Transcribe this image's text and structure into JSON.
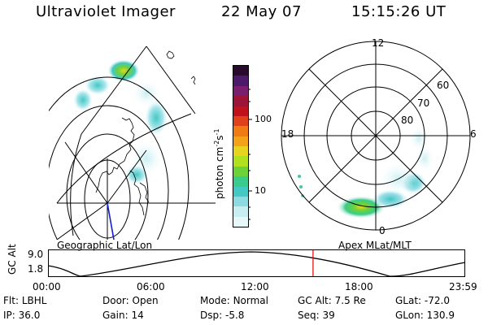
{
  "header": {
    "instrument": "Ultraviolet Imager",
    "date": "22 May 07",
    "time": "15:15:26 UT"
  },
  "colorbar": {
    "label": "photon cm",
    "label_sup1": "-2",
    "label_mid": "s",
    "label_sup2": "-1",
    "ticks": [
      "100",
      "10"
    ],
    "colors": [
      "#2a0a2e",
      "#4b1a6b",
      "#7a1f6e",
      "#9c1538",
      "#c0121c",
      "#e0401a",
      "#f07a14",
      "#f4a21a",
      "#e8d41e",
      "#b0e020",
      "#6cd23a",
      "#3acb8c",
      "#44c8c4",
      "#8cdbe0",
      "#c8eef2",
      "#e8f8fa"
    ]
  },
  "map_left": {
    "caption": "Geographic Lat/Lon"
  },
  "map_right": {
    "caption": "Apex MLat/MLT",
    "mlt_labels": {
      "top": "12",
      "left": "18",
      "right": "6",
      "bottom": "0"
    },
    "lat_labels": [
      "60",
      "70",
      "80"
    ]
  },
  "timeline": {
    "ylabel": "GC Alt",
    "y_ticks": [
      "9.0",
      "1.8"
    ],
    "x_ticks": [
      "00:00",
      "06:00",
      "12:00",
      "18:00",
      "23:59"
    ],
    "current_time": "15:15",
    "marker_color": "#e00000"
  },
  "info": {
    "row1": [
      {
        "key": "Flt:",
        "value": "LBHL"
      },
      {
        "key": "Door:",
        "value": "Open"
      },
      {
        "key": "Mode:",
        "value": "Normal"
      },
      {
        "key": "GC Alt:",
        "value": "7.5 Re"
      },
      {
        "key": "GLat:",
        "value": "-72.0"
      }
    ],
    "row2": [
      {
        "key": "IP:",
        "value": "36.0"
      },
      {
        "key": "Gain:",
        "value": "14"
      },
      {
        "key": "Dsp:",
        "value": "-5.8"
      },
      {
        "key": "Seq:",
        "value": "39"
      },
      {
        "key": "GLon:",
        "value": "130.9"
      }
    ]
  }
}
